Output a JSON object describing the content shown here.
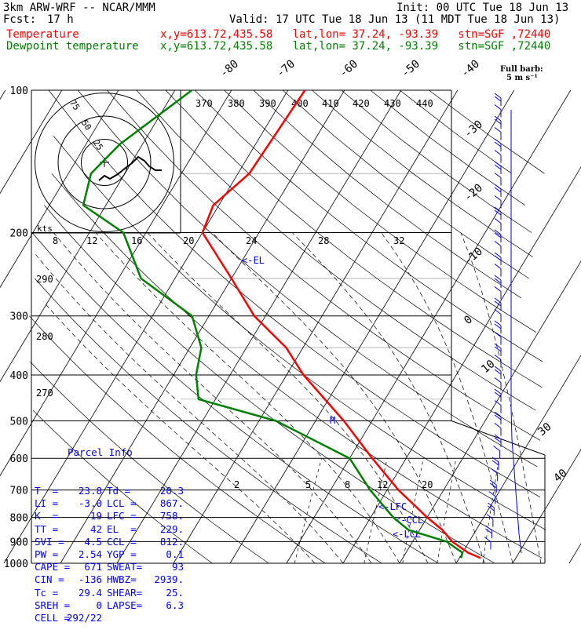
{
  "header": {
    "title_left": "3km ARW-WRF -- NCAR/MMM",
    "init": "Init: 00 UTC Tue 18 Jun 13",
    "fcst_label": "Fcst:",
    "fcst_hours": "17 h",
    "valid": "Valid: 17 UTC Tue 18 Jun 13 (11 MDT Tue 18 Jun 13)",
    "temp_label": "Temperature",
    "dewp_label": "Dewpoint temperature",
    "loc_info": "x,y=613.72,435.58   lat,lon= 37.24, -93.39   stn=SGF ,72440"
  },
  "wind_key": {
    "line1": "Full barb:",
    "line2": "5 m s⁻¹"
  },
  "parcel_info": {
    "title": "Parcel Info",
    "rows": [
      [
        "T  =",
        "23.8",
        "Td =",
        "20.3"
      ],
      [
        "LI =",
        "-3.0",
        "LCL =",
        "867."
      ],
      [
        "K  =",
        "19",
        "LFC =",
        "758."
      ],
      [
        "TT =",
        "42",
        "EL  =",
        "229."
      ],
      [
        "SVI =",
        "4.5",
        "CCL =",
        "812."
      ],
      [
        "PW =",
        "2.54",
        "YGP =",
        "0.1"
      ],
      [
        "CAPE =",
        "671",
        "SWEAT=",
        "93"
      ],
      [
        "CIN =",
        "-136",
        "HWBZ=",
        "2939."
      ],
      [
        "Tc =",
        "29.4",
        "SHEAR=",
        "25."
      ],
      [
        "SREH =",
        "0",
        "LAPSE=",
        "6.3"
      ],
      [
        "CELL =",
        "292/22",
        "",
        ""
      ]
    ]
  },
  "colors": {
    "temperature": "#ff0000",
    "dewpoint": "#008000",
    "parcel": "#0000ff",
    "theta": "#000000"
  },
  "chart_data": {
    "type": "line",
    "title": "",
    "ylabel": "",
    "pressure_levels": [
      100,
      200,
      300,
      400,
      500,
      600,
      700,
      800,
      900,
      1000
    ],
    "isotherm_labels": [
      "-80",
      "-70",
      "-60",
      "-50",
      "-40",
      "-30",
      "-20",
      "-10",
      "0",
      "10",
      "30",
      "40"
    ],
    "theta_e_labels": [
      "370",
      "380",
      "390",
      "400",
      "410",
      "420",
      "430",
      "440"
    ],
    "upper_temp_labels": [
      "8",
      "12",
      "16",
      "20",
      "24",
      "28",
      "32"
    ],
    "dry_adiabat_labels": [
      "290",
      "280",
      "270"
    ],
    "mixing_ratio_labels": [
      "2",
      "5",
      "8",
      "12",
      "20"
    ],
    "parcel_labels": [
      "<-EL",
      "M",
      "<-LFC",
      "<-CCL",
      "<-LCL"
    ],
    "series": [
      {
        "name": "Temperature",
        "color": "#ff0000",
        "points": [
          [
            100,
            -57
          ],
          [
            150,
            -58
          ],
          [
            175,
            -61
          ],
          [
            200,
            -60
          ],
          [
            250,
            -50
          ],
          [
            300,
            -42
          ],
          [
            350,
            -33
          ],
          [
            400,
            -27
          ],
          [
            500,
            -15
          ],
          [
            600,
            -6
          ],
          [
            700,
            2
          ],
          [
            800,
            10
          ],
          [
            850,
            14
          ],
          [
            900,
            17
          ],
          [
            950,
            21
          ],
          [
            975,
            23.8
          ]
        ]
      },
      {
        "name": "Dewpoint temperature",
        "color": "#008000",
        "points": [
          [
            100,
            -77
          ],
          [
            130,
            -84
          ],
          [
            150,
            -86
          ],
          [
            175,
            -84
          ],
          [
            200,
            -74
          ],
          [
            250,
            -66
          ],
          [
            300,
            -53
          ],
          [
            350,
            -48
          ],
          [
            400,
            -46
          ],
          [
            450,
            -43
          ],
          [
            500,
            -27
          ],
          [
            600,
            -10
          ],
          [
            700,
            -3
          ],
          [
            800,
            4
          ],
          [
            850,
            8
          ],
          [
            900,
            16
          ],
          [
            950,
            20
          ],
          [
            975,
            20.3
          ]
        ]
      }
    ],
    "hodograph": {
      "rings": [
        "25",
        "50",
        "75"
      ],
      "unit": "kts"
    }
  }
}
